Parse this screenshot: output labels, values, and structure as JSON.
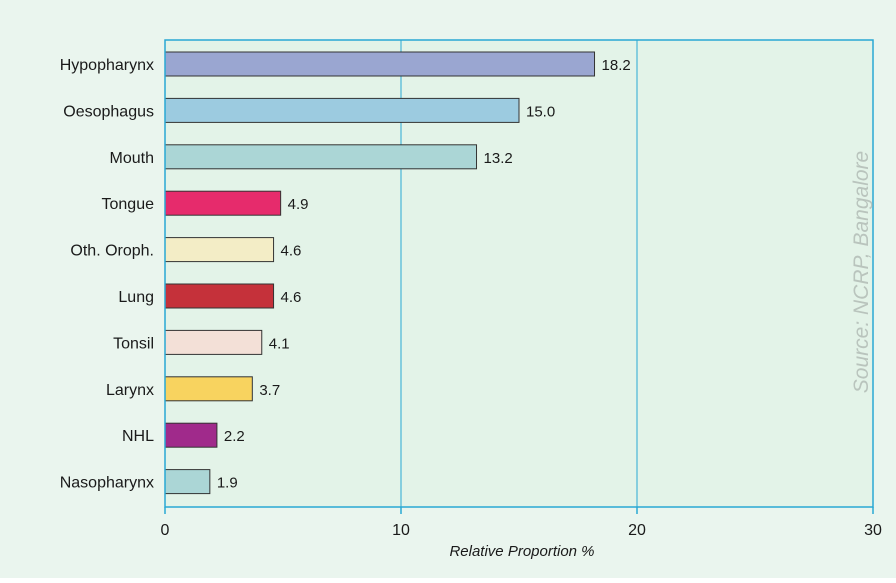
{
  "chart_data": {
    "type": "bar",
    "orientation": "horizontal",
    "categories": [
      "Hypopharynx",
      "Oesophagus",
      "Mouth",
      "Tongue",
      "Oth. Oroph.",
      "Lung",
      "Tonsil",
      "Larynx",
      "NHL",
      "Nasopharynx"
    ],
    "values": [
      18.2,
      15.0,
      13.2,
      4.9,
      4.6,
      4.6,
      4.1,
      3.7,
      2.2,
      1.9
    ],
    "value_labels": [
      "18.2",
      "15.0",
      "13.2",
      "4.9",
      "4.6",
      "4.6",
      "4.1",
      "3.7",
      "2.2",
      "1.9"
    ],
    "colors": [
      "#9aa6d1",
      "#9ccbe0",
      "#abd6d6",
      "#e62b6c",
      "#f3edc6",
      "#c5313a",
      "#f3e0d7",
      "#f8d35f",
      "#a02a8b",
      "#abd6d6"
    ],
    "xlabel": "Relative Proportion %",
    "xlim": [
      0,
      30
    ],
    "xticks": [
      0,
      10,
      20,
      30
    ],
    "xtick_labels": [
      "0",
      "10",
      "20",
      "30"
    ],
    "grid": "vertical",
    "source_note": "Source: NCRP, Bangalore"
  },
  "style": {
    "panel_background": "#eaf5ee",
    "plot_background": "#e3f3e8",
    "axis_color": "#29a8d4",
    "bar_edge_color": "#333333"
  }
}
